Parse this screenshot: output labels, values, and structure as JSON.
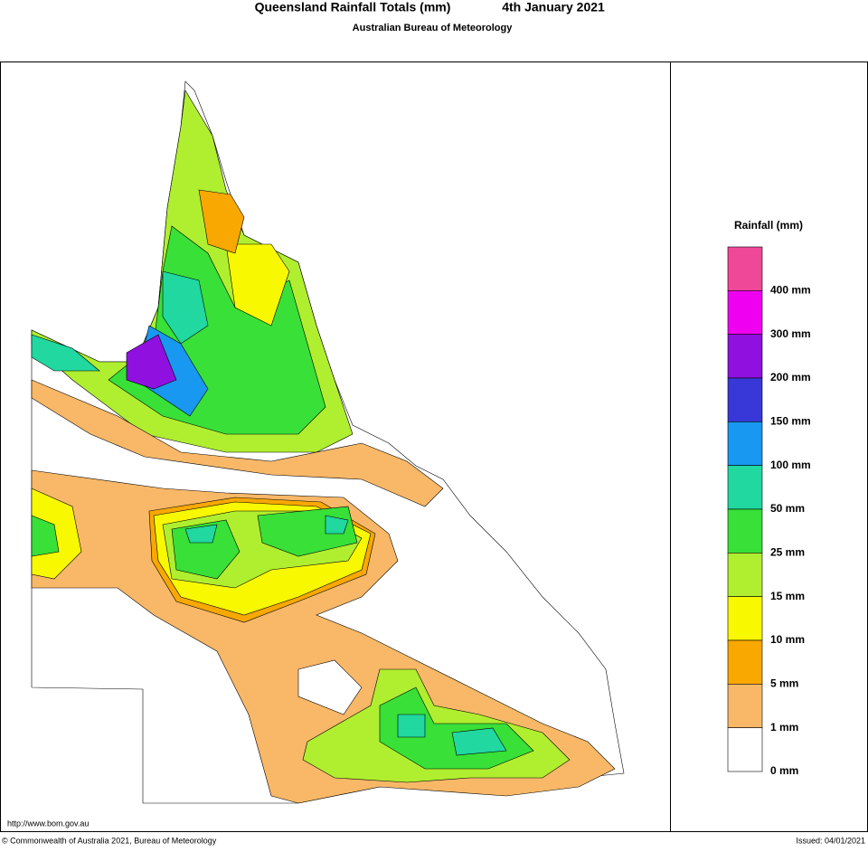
{
  "header": {
    "title": "Queensland Rainfall Totals (mm)",
    "date": "4th January 2021",
    "subtitle": "Australian Bureau of Meteorology"
  },
  "legend": {
    "title": "Rainfall (mm)",
    "items": [
      {
        "label": "400 mm",
        "color": "#f04898"
      },
      {
        "label": "300 mm",
        "color": "#f000f0"
      },
      {
        "label": "200 mm",
        "color": "#9010e0"
      },
      {
        "label": "150 mm",
        "color": "#3838d8"
      },
      {
        "label": "100 mm",
        "color": "#1898f0"
      },
      {
        "label": "50 mm",
        "color": "#20d8a0"
      },
      {
        "label": "25 mm",
        "color": "#38e038"
      },
      {
        "label": "15 mm",
        "color": "#b0ee30"
      },
      {
        "label": "10 mm",
        "color": "#f8f800"
      },
      {
        "label": "5 mm",
        "color": "#f8a800"
      },
      {
        "label": "1 mm",
        "color": "#f8b868"
      },
      {
        "label": "0 mm",
        "color": "#ffffff"
      }
    ]
  },
  "footer": {
    "url": "http://www.bom.gov.au",
    "copyright": "© Commonwealth of Australia 2021, Bureau of Meteorology",
    "issued": "Issued: 04/01/2021"
  }
}
